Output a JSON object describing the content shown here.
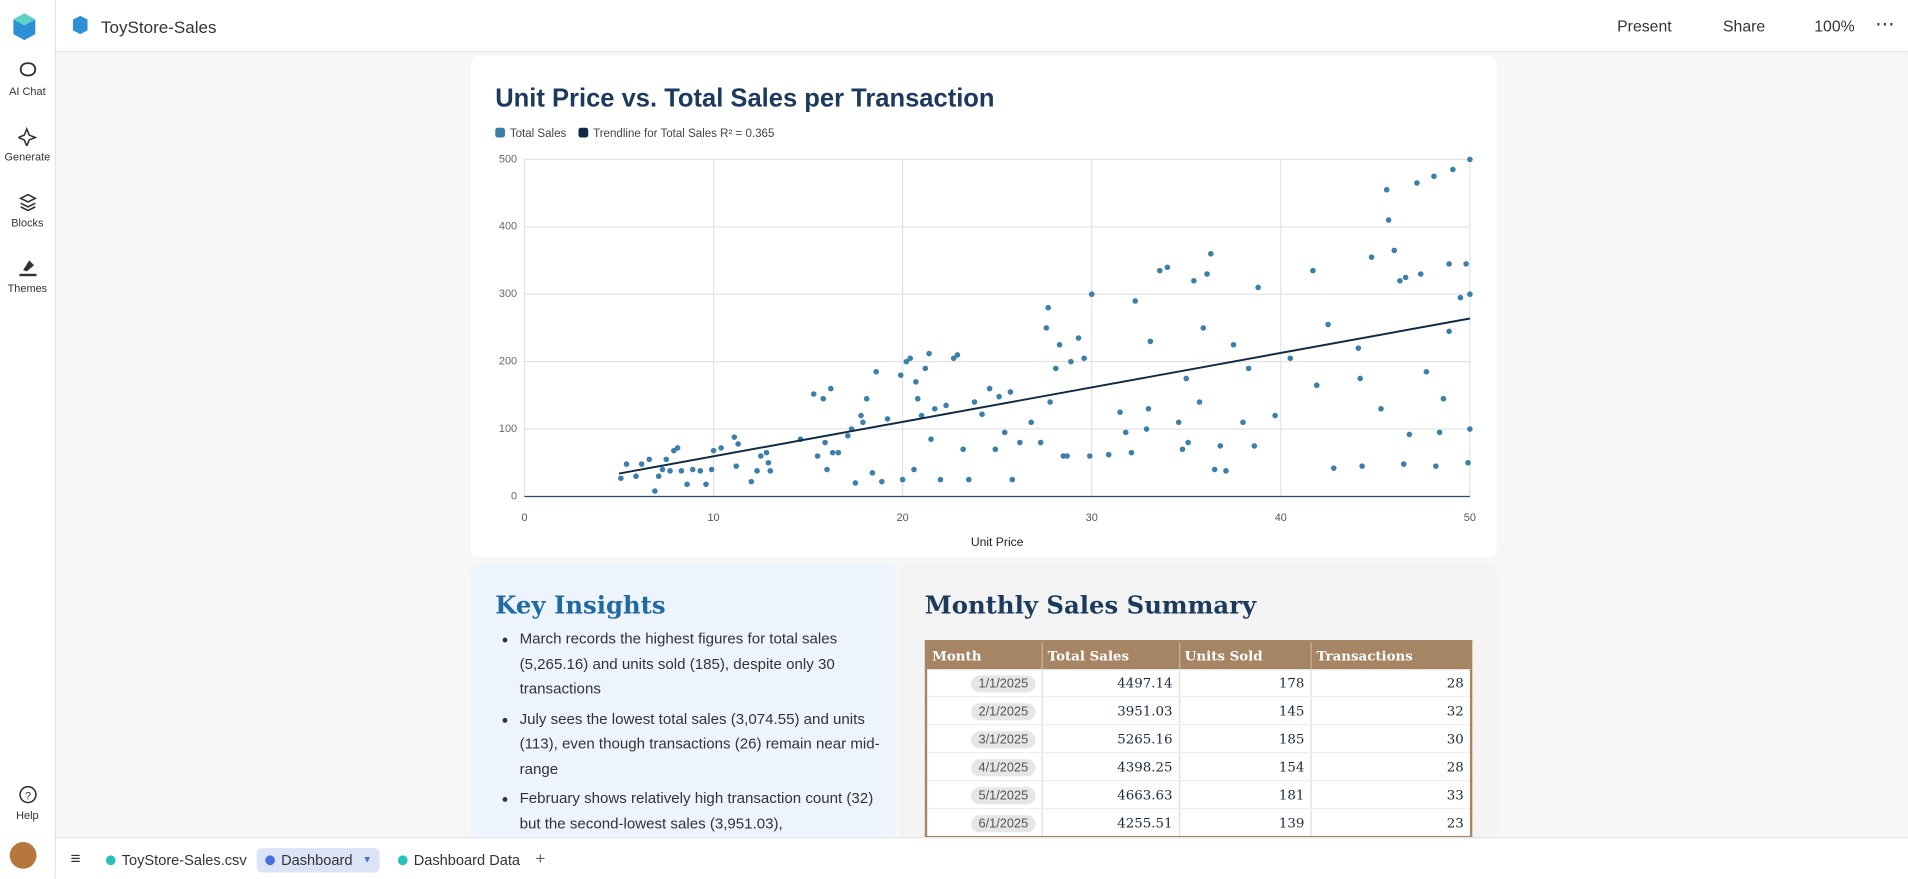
{
  "app": {
    "name": "ToyStore-Sales",
    "actions": [
      "Present",
      "Share",
      "100%"
    ]
  },
  "sidebar": [
    "AI Chat",
    "Generate",
    "Blocks",
    "Themes",
    "Help"
  ],
  "tabs": [
    "ToyStore-Sales.csv",
    "Dashboard",
    "Dashboard Data"
  ],
  "chart_data": {
    "type": "scatter",
    "title": "Unit Price vs. Total Sales per Transaction",
    "xlabel": "Unit Price",
    "xlim": [
      0,
      50
    ],
    "xticks": [
      0,
      10,
      20,
      30,
      40,
      50
    ],
    "ylim": [
      0,
      500
    ],
    "yticks": [
      0,
      100,
      200,
      300,
      400,
      500
    ],
    "grid": true,
    "series": [
      {
        "name": "Total Sales",
        "color": "#3b7fab",
        "type": "scatter",
        "x": [
          5.1,
          5.4,
          5.9,
          6.2,
          6.6,
          6.9,
          7.1,
          7.3,
          7.5,
          7.7,
          7.9,
          8.1,
          8.3,
          8.6,
          8.9,
          9.3,
          9.6,
          9.9,
          10.0,
          10.4,
          11.1,
          11.2,
          11.3,
          12.0,
          12.3,
          12.5,
          12.8,
          12.9,
          13.0,
          14.6,
          15.3,
          15.5,
          15.8,
          15.9,
          16.0,
          16.2,
          16.3,
          16.6,
          17.1,
          17.3,
          17.5,
          17.8,
          17.9,
          18.1,
          18.4,
          18.6,
          18.9,
          19.2,
          19.9,
          20.0,
          20.2,
          20.4,
          20.6,
          20.7,
          20.8,
          21.0,
          21.2,
          21.4,
          21.5,
          21.7,
          22.0,
          22.3,
          22.7,
          22.9,
          23.2,
          23.5,
          23.8,
          24.2,
          24.6,
          24.9,
          25.1,
          25.4,
          25.7,
          25.8,
          26.2,
          26.8,
          27.3,
          27.6,
          27.7,
          27.8,
          28.1,
          28.3,
          28.5,
          28.7,
          28.9,
          29.3,
          29.6,
          29.9,
          30.0,
          30.9,
          31.5,
          31.8,
          32.1,
          32.3,
          32.9,
          33.1,
          33.6,
          34.0,
          34.6,
          35.0,
          35.4,
          35.7,
          35.9,
          36.1,
          36.3,
          36.5,
          36.8,
          37.1,
          37.5,
          38.0,
          38.3,
          38.6,
          38.8,
          39.7,
          40.5,
          41.7,
          41.9,
          42.5,
          42.8,
          44.1,
          44.3,
          44.8,
          45.3,
          45.6,
          45.7,
          46.0,
          46.3,
          46.6,
          46.8,
          47.4,
          47.7,
          48.1,
          48.4,
          48.6,
          48.9,
          49.1,
          49.5,
          49.8,
          49.9,
          50.0,
          50.0,
          50.0,
          47.2,
          46.5,
          44.2,
          48.2,
          48.9,
          34.8,
          35.1,
          33.0
        ],
        "values": [
          27,
          48,
          30,
          48,
          55,
          8,
          30,
          40,
          55,
          38,
          68,
          72,
          38,
          18,
          40,
          38,
          18,
          40,
          68,
          72,
          88,
          45,
          78,
          22,
          38,
          60,
          65,
          50,
          38,
          85,
          152,
          60,
          145,
          80,
          40,
          160,
          65,
          65,
          90,
          100,
          20,
          120,
          110,
          145,
          35,
          185,
          22,
          115,
          180,
          25,
          200,
          205,
          40,
          170,
          145,
          120,
          190,
          212,
          85,
          130,
          25,
          135,
          205,
          210,
          70,
          25,
          140,
          122,
          160,
          70,
          148,
          95,
          155,
          25,
          80,
          110,
          80,
          250,
          280,
          140,
          190,
          225,
          60,
          60,
          200,
          235,
          205,
          60,
          300,
          62,
          125,
          95,
          65,
          290,
          100,
          230,
          335,
          340,
          110,
          175,
          320,
          140,
          250,
          330,
          360,
          40,
          75,
          38,
          225,
          110,
          190,
          75,
          310,
          120,
          205,
          335,
          165,
          255,
          42,
          220,
          45,
          355,
          130,
          455,
          410,
          365,
          320,
          325,
          92,
          330,
          185,
          475,
          95,
          145,
          345,
          485,
          295,
          345,
          50,
          300,
          100,
          500,
          465,
          48,
          175,
          45,
          245,
          70,
          80,
          130
        ]
      },
      {
        "name": "Trendline for Total Sales R² = 0.365",
        "color": "#0f2a45",
        "type": "line",
        "x": [
          5,
          50
        ],
        "values": [
          34,
          264
        ]
      }
    ]
  },
  "insights": {
    "title": "Key Insights",
    "bullets": [
      "March records the highest figures for total sales (5,265.16) and units sold (185), despite only 30 transactions",
      "July sees the lowest total sales (3,074.55) and units (113), even though transactions (26) remain near mid-range",
      "February shows relatively high transaction count (32) but the second-lowest sales (3,951.03),"
    ]
  },
  "summary_table": {
    "title": "Monthly Sales Summary",
    "columns": [
      "Month",
      "Total Sales",
      "Units Sold",
      "Transactions"
    ],
    "rows": [
      [
        "1/1/2025",
        4497.14,
        178,
        28
      ],
      [
        "2/1/2025",
        3951.03,
        145,
        32
      ],
      [
        "3/1/2025",
        5265.16,
        185,
        30
      ],
      [
        "4/1/2025",
        4398.25,
        154,
        28
      ],
      [
        "5/1/2025",
        4663.63,
        181,
        33
      ],
      [
        "6/1/2025",
        4255.51,
        139,
        23
      ]
    ]
  }
}
